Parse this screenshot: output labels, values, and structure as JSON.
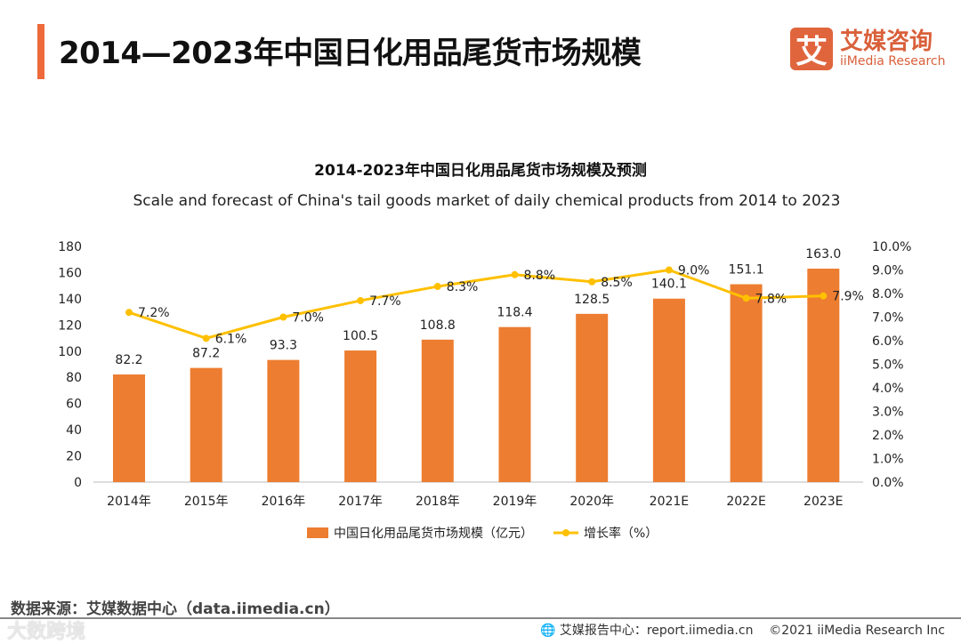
{
  "header": {
    "title": "2014—2023年中国日化用品尾货市场规模",
    "logo_mark": "艾",
    "logo_cn": "艾媒咨询",
    "logo_en": "iiMedia Research"
  },
  "chart_data": {
    "type": "bar+line",
    "title": "2014-2023年中国日化用品尾货市场规模及预测",
    "subtitle": "Scale and forecast of China's tail goods market of daily chemical products from 2014 to 2023",
    "categories": [
      "2014年",
      "2015年",
      "2016年",
      "2017年",
      "2018年",
      "2019年",
      "2020年",
      "2021E",
      "2022E",
      "2023E"
    ],
    "series": [
      {
        "name": "中国日化用品尾货市场规模（亿元）",
        "type": "bar",
        "axis": "left",
        "color": "#ed7d31",
        "values": [
          82.2,
          87.2,
          93.3,
          100.5,
          108.8,
          118.4,
          128.5,
          140.1,
          151.1,
          163.0
        ],
        "labels": [
          "82.2",
          "87.2",
          "93.3",
          "100.5",
          "108.8",
          "118.4",
          "128.5",
          "140.1",
          "151.1",
          "163.0"
        ]
      },
      {
        "name": "增长率（%）",
        "type": "line",
        "axis": "right",
        "color": "#ffc000",
        "values": [
          7.2,
          6.1,
          7.0,
          7.7,
          8.3,
          8.8,
          8.5,
          9.0,
          7.8,
          7.9
        ],
        "labels": [
          "7.2%",
          "6.1%",
          "7.0%",
          "7.7%",
          "8.3%",
          "8.8%",
          "8.5%",
          "9.0%",
          "7.8%",
          "7.9%"
        ]
      }
    ],
    "ylim": [
      0,
      180
    ],
    "yticks": [
      "0",
      "20",
      "40",
      "60",
      "80",
      "100",
      "120",
      "140",
      "160",
      "180"
    ],
    "y2lim": [
      0,
      10
    ],
    "y2ticks": [
      "0.0%",
      "1.0%",
      "2.0%",
      "3.0%",
      "4.0%",
      "5.0%",
      "6.0%",
      "7.0%",
      "8.0%",
      "9.0%",
      "10.0%"
    ],
    "legend": "bottom",
    "grid": false
  },
  "footer": {
    "source": "数据来源：艾媒数据中心（data.iimedia.cn）",
    "report": "艾媒报告中心：report.iimedia.cn",
    "copyright": "©2021  iiMedia Research  Inc",
    "watermark": "大数跨境"
  }
}
